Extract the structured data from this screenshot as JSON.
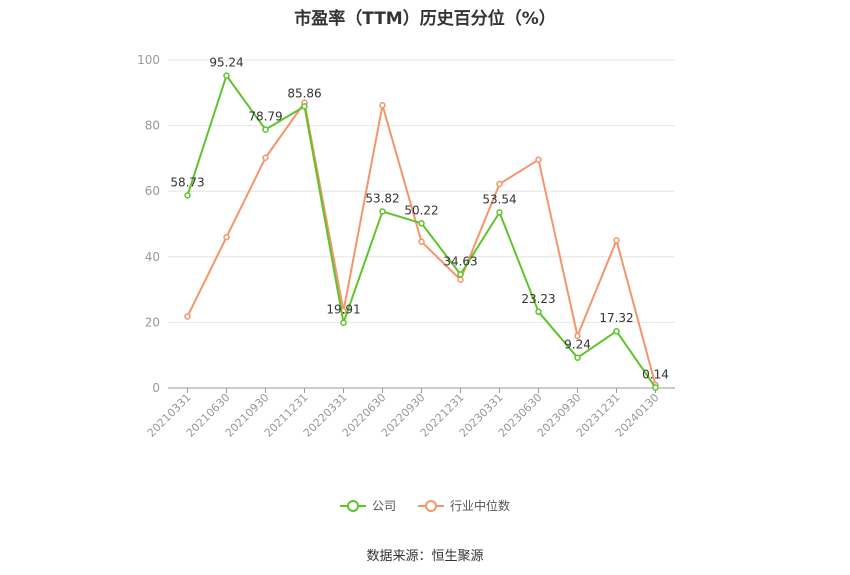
{
  "chart_data": {
    "type": "line",
    "title": "市盈率（TTM）历史百分位（%）",
    "categories": [
      "20210331",
      "20210630",
      "20210930",
      "20211231",
      "20220331",
      "20220630",
      "20220930",
      "20221231",
      "20230331",
      "20230630",
      "20230930",
      "20231231",
      "20240130"
    ],
    "ylim": [
      0,
      100
    ],
    "yticks": [
      0,
      20,
      40,
      60,
      80,
      100
    ],
    "grid": true,
    "legend_position": "bottom",
    "series": [
      {
        "name": "公司",
        "color": "#5dc42b",
        "values": [
          58.73,
          95.24,
          78.79,
          85.86,
          19.91,
          53.82,
          50.22,
          34.63,
          53.54,
          23.23,
          9.24,
          17.32,
          0.14
        ],
        "labels": [
          "58.73",
          "95.24",
          "78.79",
          "85.86",
          "19.91",
          "53.82",
          "50.22",
          "34.63",
          "53.54",
          "23.23",
          "9.24",
          "17.32",
          "0.14"
        ]
      },
      {
        "name": "行业中位数",
        "color": "#f4956a",
        "values": [
          21.8,
          46,
          70.2,
          87,
          23.5,
          86.2,
          44.6,
          33,
          62.2,
          69.6,
          15.9,
          45,
          0.9
        ]
      }
    ]
  },
  "footer": {
    "source": "数据来源：恒生聚源"
  }
}
